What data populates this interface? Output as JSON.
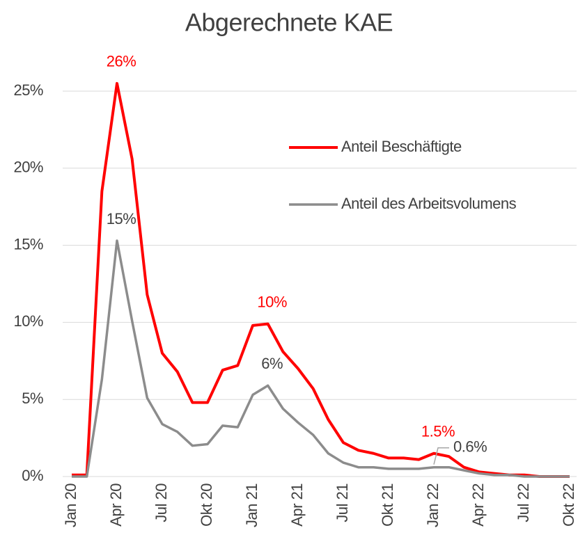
{
  "chart_data": {
    "type": "line",
    "title": "Abgerechnete  KAE",
    "categories": [
      "Jan 20",
      null,
      null,
      "Apr 20",
      null,
      null,
      "Jul 20",
      null,
      null,
      "Okt 20",
      null,
      null,
      "Jan 21",
      null,
      null,
      "Apr 21",
      null,
      null,
      "Jul 21",
      null,
      null,
      "Okt 21",
      null,
      null,
      "Jan 22",
      null,
      null,
      "Apr 22",
      null,
      null,
      "Jul 22",
      null,
      null,
      "Okt 22"
    ],
    "series": [
      {
        "name": "Anteil Beschäftigte",
        "color": "#ff0000",
        "values": [
          0.1,
          0.1,
          18.5,
          25.5,
          20.6,
          11.8,
          8.0,
          6.8,
          4.8,
          4.8,
          6.9,
          7.2,
          9.8,
          9.9,
          8.1,
          7.0,
          5.7,
          3.7,
          2.2,
          1.7,
          1.5,
          1.2,
          1.2,
          1.1,
          1.5,
          1.3,
          0.6,
          0.3,
          0.2,
          0.1,
          0.1,
          0.0,
          0.0,
          0.0
        ],
        "value_labels": [
          null,
          null,
          null,
          "26%",
          null,
          null,
          null,
          null,
          null,
          null,
          null,
          null,
          null,
          "10%",
          null,
          null,
          null,
          null,
          null,
          null,
          null,
          null,
          null,
          null,
          "1.5%",
          null,
          null,
          null,
          null,
          null,
          null,
          null,
          null,
          null
        ]
      },
      {
        "name": "Anteil des Arbeitsvolumens",
        "color": "#8c8c8c",
        "values": [
          0.0,
          0.0,
          6.3,
          15.3,
          10.1,
          5.1,
          3.4,
          2.9,
          2.0,
          2.1,
          3.3,
          3.2,
          5.3,
          5.9,
          4.4,
          3.5,
          2.7,
          1.5,
          0.9,
          0.6,
          0.6,
          0.5,
          0.5,
          0.5,
          0.6,
          0.6,
          0.4,
          0.2,
          0.1,
          0.1,
          0.0,
          0.0,
          0.0,
          0.0
        ],
        "value_labels": [
          null,
          null,
          null,
          "15%",
          null,
          null,
          null,
          null,
          null,
          null,
          null,
          null,
          null,
          "6%",
          null,
          null,
          null,
          null,
          null,
          null,
          null,
          null,
          null,
          null,
          "0.6%",
          null,
          null,
          null,
          null,
          null,
          null,
          null,
          null,
          null
        ]
      }
    ],
    "ylim": [
      0,
      25
    ],
    "yticks": [
      {
        "value": 0,
        "label": "0%"
      },
      {
        "value": 5,
        "label": "5%"
      },
      {
        "value": 10,
        "label": "10%"
      },
      {
        "value": 15,
        "label": "15%"
      },
      {
        "value": 20,
        "label": "20%"
      },
      {
        "value": 25,
        "label": "25%"
      }
    ],
    "grid": true,
    "legend": "upper right"
  }
}
